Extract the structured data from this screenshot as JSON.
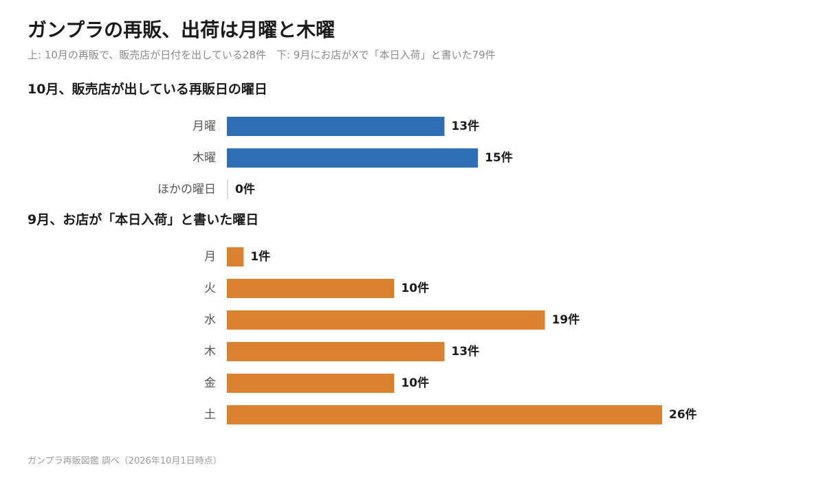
{
  "title": "ガンプラの再販、出荷は月曜と木曜",
  "subtitle": "上: 10月の再販で、販売店が日付を出している28件　下: 9月にお店がXで「本日入荷」と書いた79件",
  "footer": "ガンプラ再販図鑑 調べ（2026年10月1日時点）",
  "colors": {
    "series_top": "#2f6db5",
    "series_bottom": "#d9812f",
    "zero_tick": "#cccccc"
  },
  "chart_data": [
    {
      "type": "bar",
      "orientation": "horizontal",
      "title": "10月、販売店が出している再販日の曜日",
      "categories": [
        "月曜",
        "木曜",
        "ほかの曜日"
      ],
      "values": [
        13,
        15,
        0
      ],
      "data_labels": [
        "13件",
        "15件",
        "0件"
      ],
      "unit": "件",
      "xlim": [
        0,
        26
      ]
    },
    {
      "type": "bar",
      "orientation": "horizontal",
      "title": "9月、お店が「本日入荷」と書いた曜日",
      "categories": [
        "月",
        "火",
        "水",
        "木",
        "金",
        "土"
      ],
      "values": [
        1,
        10,
        19,
        13,
        10,
        26
      ],
      "data_labels": [
        "1件",
        "10件",
        "19件",
        "13件",
        "10件",
        "26件"
      ],
      "unit": "件",
      "xlim": [
        0,
        26
      ]
    }
  ]
}
